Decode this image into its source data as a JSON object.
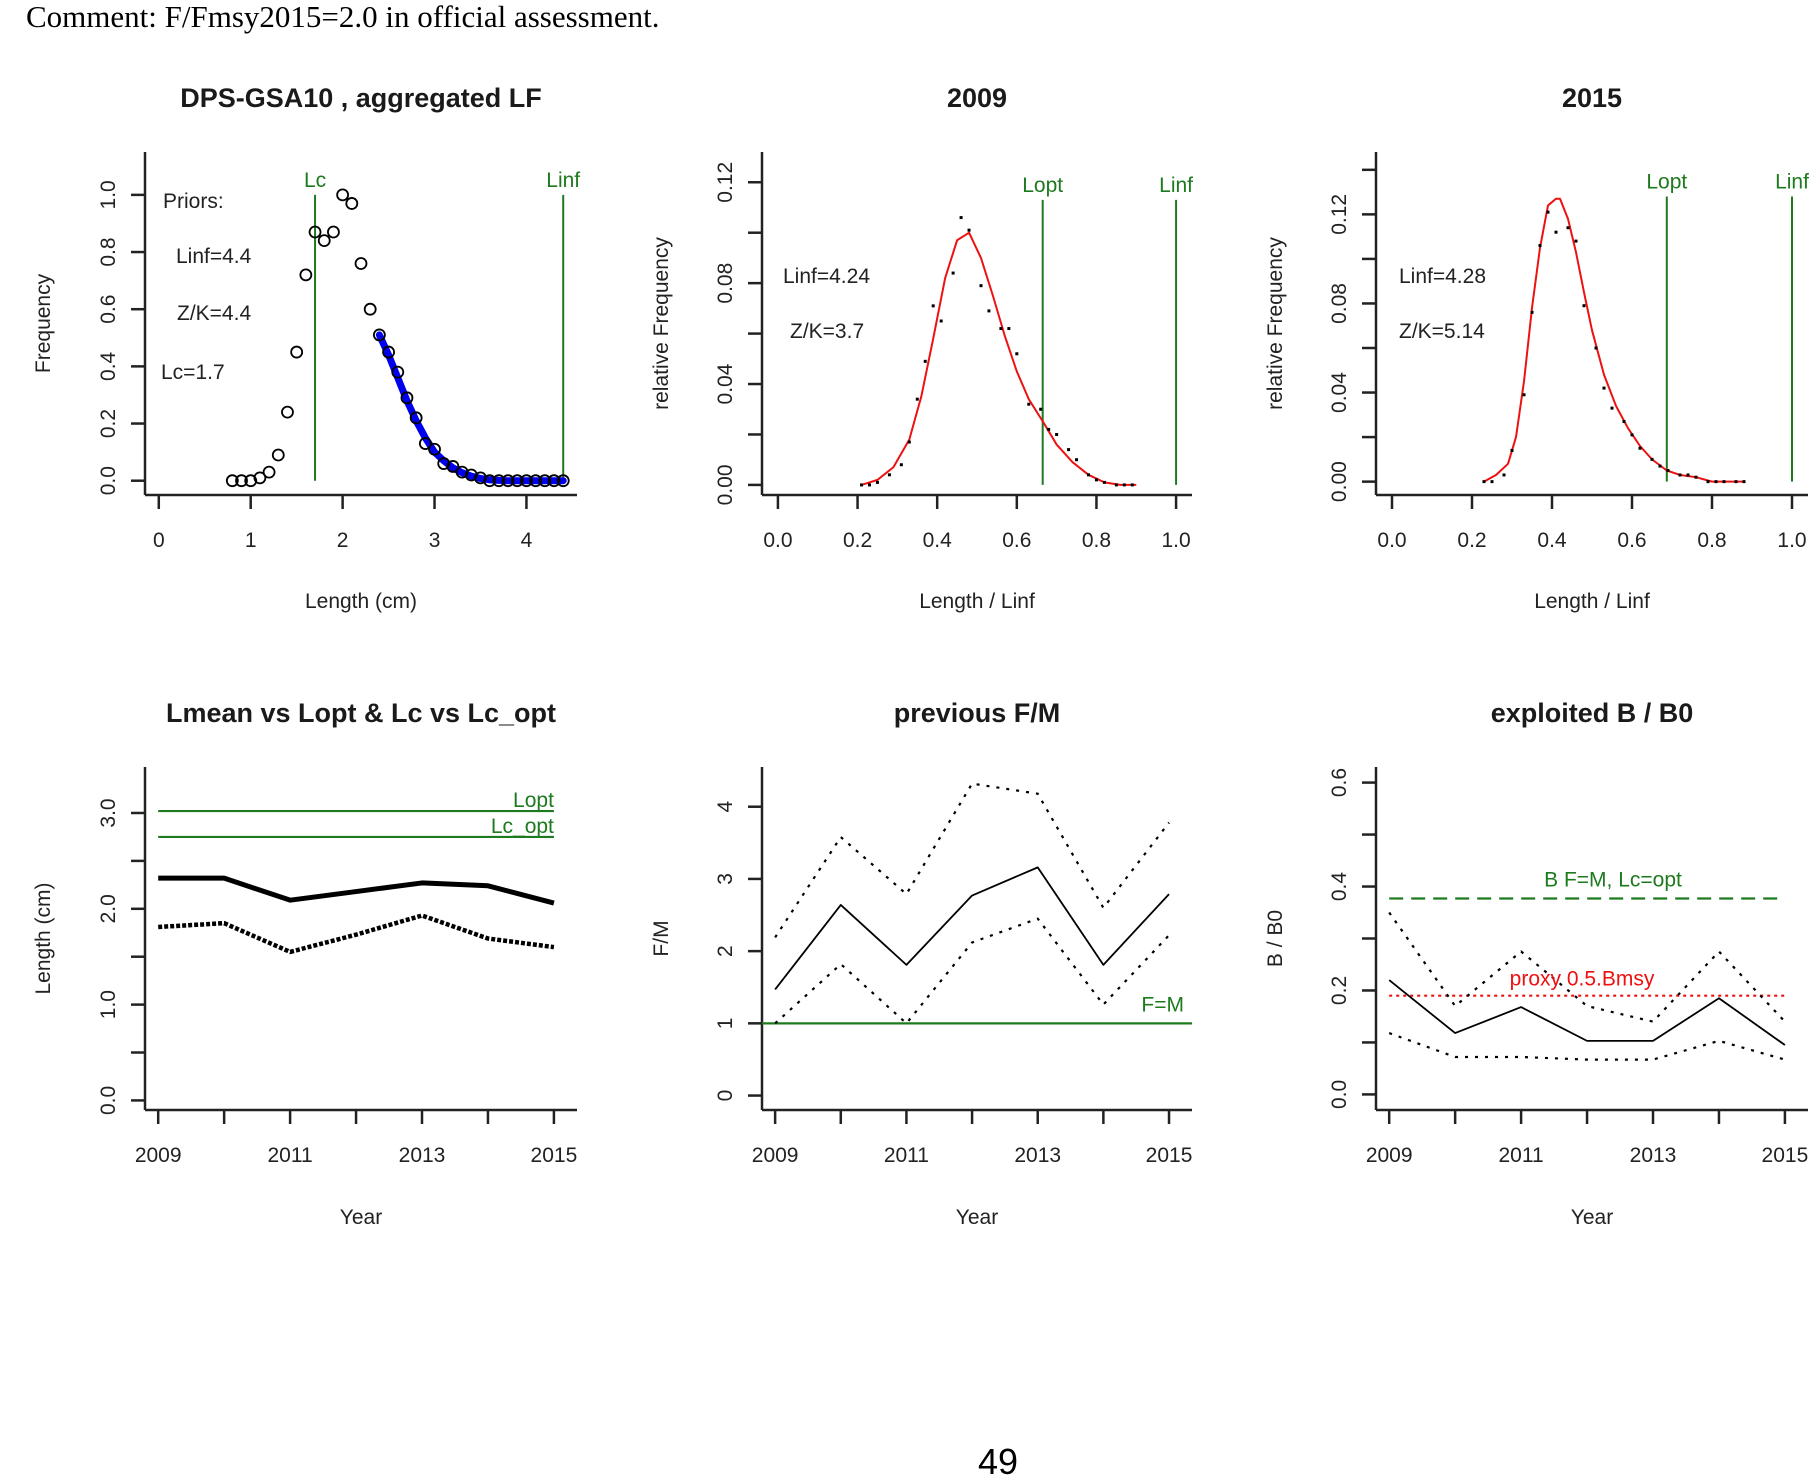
{
  "document": {
    "comment": "Comment: F/Fmsy2015=2.0 in official assessment.",
    "page_number": "49"
  },
  "colors": {
    "ref_line_green": "#1e7a1e",
    "fit_red": "#ee1111",
    "selection_blue": "#0000ee",
    "data_black": "#000000"
  },
  "chart_data": [
    {
      "id": "lf",
      "type": "scatter",
      "title": "DPS-GSA10 , aggregated LF",
      "xlabel": "Length (cm)",
      "ylabel": "Frequency",
      "xlim": [
        -0.15,
        4.55
      ],
      "ylim": [
        -0.05,
        1.15
      ],
      "xticks": [
        0,
        1,
        2,
        3,
        4
      ],
      "xtick_labels": [
        "0",
        "1",
        "2",
        "3",
        "4"
      ],
      "yticks": [
        0,
        0.2,
        0.4,
        0.6,
        0.8,
        1.0
      ],
      "ytick_labels": [
        "0.0",
        "0.2",
        "0.4",
        "0.6",
        "0.8",
        "1.0"
      ],
      "points": {
        "x": [
          0.8,
          0.9,
          1.0,
          1.1,
          1.2,
          1.3,
          1.4,
          1.5,
          1.6,
          1.7,
          1.8,
          1.9,
          2.0,
          2.1,
          2.2,
          2.3,
          2.4,
          2.5,
          2.6,
          2.7,
          2.8,
          2.9,
          3.0,
          3.1,
          3.2,
          3.3,
          3.4,
          3.5,
          3.6,
          3.7,
          3.8,
          3.9,
          4.0,
          4.1,
          4.2,
          4.3,
          4.4
        ],
        "y": [
          0,
          0,
          0,
          0.01,
          0.03,
          0.09,
          0.24,
          0.45,
          0.72,
          0.87,
          0.84,
          0.87,
          1.0,
          0.97,
          0.76,
          0.6,
          0.51,
          0.45,
          0.38,
          0.29,
          0.22,
          0.13,
          0.11,
          0.06,
          0.05,
          0.03,
          0.02,
          0.01,
          0,
          0,
          0,
          0,
          0,
          0,
          0,
          0,
          0
        ]
      },
      "fit_curve": {
        "name": "catch curve fit (blue)",
        "x": [
          2.4,
          2.5,
          2.6,
          2.7,
          2.8,
          2.9,
          3.0,
          3.1,
          3.2,
          3.3,
          3.4,
          3.5,
          3.6,
          3.7,
          3.8,
          3.9,
          4.0,
          4.1,
          4.2,
          4.3,
          4.4
        ],
        "y": [
          0.51,
          0.44,
          0.36,
          0.28,
          0.21,
          0.15,
          0.1,
          0.07,
          0.045,
          0.028,
          0.016,
          0.008,
          0.003,
          0.001,
          0,
          0,
          0,
          0,
          0,
          0,
          0
        ]
      },
      "vlines": [
        {
          "label": "Lc",
          "x": 1.7
        },
        {
          "label": "Linf",
          "x": 4.4
        }
      ],
      "annotations": [
        "Priors:",
        "Linf=4.4",
        "Z/K=4.4",
        "Lc=1.7"
      ]
    },
    {
      "id": "lf2009",
      "type": "scatter",
      "title": "2009",
      "xlabel": "Length / Linf",
      "ylabel": "relative Frequency",
      "xlim": [
        -0.04,
        1.04
      ],
      "ylim": [
        -0.004,
        0.132
      ],
      "xticks": [
        0,
        0.2,
        0.4,
        0.6,
        0.8,
        1.0
      ],
      "xtick_labels": [
        "0.0",
        "0.2",
        "0.4",
        "0.6",
        "0.8",
        "1.0"
      ],
      "yticks": [
        0,
        0.02,
        0.04,
        0.06,
        0.08,
        0.1,
        0.12
      ],
      "ytick_labels": [
        "0.00",
        "",
        "0.04",
        "",
        "0.08",
        "",
        "0.12"
      ],
      "points": {
        "x": [
          0.21,
          0.23,
          0.25,
          0.28,
          0.31,
          0.33,
          0.35,
          0.37,
          0.39,
          0.41,
          0.44,
          0.46,
          0.48,
          0.51,
          0.53,
          0.56,
          0.58,
          0.6,
          0.63,
          0.66,
          0.68,
          0.7,
          0.73,
          0.75,
          0.78,
          0.8,
          0.82,
          0.85,
          0.87,
          0.89
        ],
        "y": [
          0,
          0,
          0.001,
          0.004,
          0.008,
          0.017,
          0.034,
          0.049,
          0.071,
          0.065,
          0.084,
          0.106,
          0.101,
          0.079,
          0.069,
          0.062,
          0.062,
          0.052,
          0.032,
          0.03,
          0.022,
          0.02,
          0.014,
          0.01,
          0.004,
          0.002,
          0.001,
          0,
          0,
          0
        ]
      },
      "fit_curve": {
        "name": "fit (red)",
        "x": [
          0.21,
          0.25,
          0.29,
          0.33,
          0.36,
          0.39,
          0.42,
          0.45,
          0.48,
          0.51,
          0.54,
          0.57,
          0.6,
          0.63,
          0.666,
          0.7,
          0.74,
          0.78,
          0.82,
          0.86,
          0.9
        ],
        "y": [
          0,
          0.002,
          0.007,
          0.018,
          0.035,
          0.058,
          0.082,
          0.097,
          0.1,
          0.09,
          0.075,
          0.059,
          0.045,
          0.034,
          0.025,
          0.016,
          0.009,
          0.004,
          0.001,
          0,
          0
        ]
      },
      "vlines": [
        {
          "label": "Lopt",
          "x": 0.665
        },
        {
          "label": "Linf",
          "x": 1.0
        }
      ],
      "annotations": [
        "Linf=4.24",
        "Z/K=3.7"
      ]
    },
    {
      "id": "lf2015",
      "type": "scatter",
      "title": "2015",
      "xlabel": "Length / Linf",
      "ylabel": "relative Frequency",
      "xlim": [
        -0.04,
        1.04
      ],
      "ylim": [
        -0.006,
        0.148
      ],
      "xticks": [
        0,
        0.2,
        0.4,
        0.6,
        0.8,
        1.0
      ],
      "xtick_labels": [
        "0.0",
        "0.2",
        "0.4",
        "0.6",
        "0.8",
        "1.0"
      ],
      "yticks": [
        0,
        0.02,
        0.04,
        0.06,
        0.08,
        0.1,
        0.12,
        0.14
      ],
      "ytick_labels": [
        "0.00",
        "",
        "0.04",
        "",
        "0.08",
        "",
        "0.12",
        ""
      ],
      "points": {
        "x": [
          0.23,
          0.25,
          0.28,
          0.3,
          0.33,
          0.35,
          0.37,
          0.39,
          0.41,
          0.44,
          0.46,
          0.48,
          0.51,
          0.53,
          0.55,
          0.58,
          0.6,
          0.62,
          0.65,
          0.67,
          0.69,
          0.72,
          0.74,
          0.76,
          0.79,
          0.81,
          0.83,
          0.86,
          0.88
        ],
        "y": [
          0,
          0,
          0.003,
          0.014,
          0.039,
          0.076,
          0.106,
          0.121,
          0.112,
          0.114,
          0.108,
          0.079,
          0.06,
          0.042,
          0.033,
          0.027,
          0.021,
          0.015,
          0.01,
          0.007,
          0.005,
          0.003,
          0.003,
          0.002,
          0,
          0,
          0,
          0,
          0
        ]
      },
      "fit_curve": {
        "name": "fit (red)",
        "x": [
          0.23,
          0.26,
          0.29,
          0.31,
          0.33,
          0.35,
          0.37,
          0.39,
          0.41,
          0.42,
          0.44,
          0.46,
          0.48,
          0.5,
          0.53,
          0.56,
          0.59,
          0.62,
          0.65,
          0.687,
          0.72,
          0.76,
          0.8,
          0.84,
          0.88
        ],
        "y": [
          0,
          0.003,
          0.008,
          0.02,
          0.045,
          0.078,
          0.105,
          0.124,
          0.127,
          0.127,
          0.118,
          0.103,
          0.085,
          0.068,
          0.048,
          0.034,
          0.024,
          0.016,
          0.01,
          0.005,
          0.003,
          0.002,
          0,
          0,
          0
        ]
      },
      "vlines": [
        {
          "label": "Lopt",
          "x": 0.687
        },
        {
          "label": "Linf",
          "x": 1.0
        }
      ],
      "annotations": [
        "Linf=4.28",
        "Z/K=5.14"
      ]
    },
    {
      "id": "lmean",
      "type": "line",
      "title": "Lmean vs Lopt & Lc vs Lc_opt",
      "xlabel": "Year",
      "ylabel": "Length (cm)",
      "xlim": [
        2008.8,
        2015.35
      ],
      "ylim": [
        -0.1,
        3.48
      ],
      "xticks": [
        2009,
        2010,
        2011,
        2012,
        2013,
        2014,
        2015
      ],
      "xtick_labels": [
        "2009",
        "",
        "2011",
        "",
        "2013",
        "",
        "2015"
      ],
      "yticks": [
        0,
        0.5,
        1.0,
        1.5,
        2.0,
        2.5,
        3.0
      ],
      "ytick_labels": [
        "0.0",
        "",
        "1.0",
        "",
        "2.0",
        "",
        "3.0"
      ],
      "x": [
        2009,
        2010,
        2011,
        2012,
        2013,
        2014,
        2015
      ],
      "series": [
        {
          "name": "Lmean",
          "style": "thick-solid",
          "values": [
            2.32,
            2.32,
            2.09,
            2.18,
            2.27,
            2.24,
            2.06
          ]
        },
        {
          "name": "Lc",
          "style": "thick-dotted",
          "values": [
            1.81,
            1.85,
            1.55,
            1.73,
            1.93,
            1.69,
            1.6
          ]
        }
      ],
      "hlines": [
        {
          "label": "Lopt",
          "y": 3.02
        },
        {
          "label": "Lc_opt",
          "y": 2.75
        }
      ]
    },
    {
      "id": "fm",
      "type": "line",
      "title": "previous F/M",
      "xlabel": "Year",
      "ylabel": "F/M",
      "xlim": [
        2008.8,
        2015.35
      ],
      "ylim": [
        -0.2,
        4.55
      ],
      "xticks": [
        2009,
        2010,
        2011,
        2012,
        2013,
        2014,
        2015
      ],
      "xtick_labels": [
        "2009",
        "",
        "2011",
        "",
        "2013",
        "",
        "2015"
      ],
      "yticks": [
        0,
        1,
        2,
        3,
        4
      ],
      "ytick_labels": [
        "0",
        "1",
        "2",
        "3",
        "4"
      ],
      "x": [
        2009,
        2010,
        2011,
        2012,
        2013,
        2014,
        2015
      ],
      "series": [
        {
          "name": "F/M",
          "style": "solid",
          "values": [
            1.47,
            2.64,
            1.81,
            2.77,
            3.16,
            1.81,
            2.79
          ]
        },
        {
          "name": "upper",
          "style": "dotted",
          "values": [
            2.19,
            3.58,
            2.79,
            4.32,
            4.18,
            2.6,
            3.78
          ]
        },
        {
          "name": "lower",
          "style": "dotted",
          "values": [
            1.0,
            1.82,
            1.0,
            2.12,
            2.45,
            1.26,
            2.22
          ]
        }
      ],
      "hlines": [
        {
          "label": "F=M",
          "y": 1.0
        }
      ]
    },
    {
      "id": "bb0",
      "type": "line",
      "title": "exploited B / B0",
      "xlabel": "Year",
      "ylabel": "B / B0",
      "xlim": [
        2008.8,
        2015.35
      ],
      "ylim": [
        -0.03,
        0.63
      ],
      "xticks": [
        2009,
        2010,
        2011,
        2012,
        2013,
        2014,
        2015
      ],
      "xtick_labels": [
        "2009",
        "",
        "2011",
        "",
        "2013",
        "",
        "2015"
      ],
      "yticks": [
        0,
        0.1,
        0.2,
        0.3,
        0.4,
        0.5,
        0.6
      ],
      "ytick_labels": [
        "0.0",
        "",
        "0.2",
        "",
        "0.4",
        "",
        "0.6"
      ],
      "x": [
        2009,
        2010,
        2011,
        2012,
        2013,
        2014,
        2015
      ],
      "series": [
        {
          "name": "B/B0",
          "style": "solid",
          "values": [
            0.22,
            0.118,
            0.168,
            0.103,
            0.103,
            0.185,
            0.095
          ]
        },
        {
          "name": "upper",
          "style": "dotted",
          "values": [
            0.35,
            0.17,
            0.275,
            0.17,
            0.14,
            0.275,
            0.14
          ]
        },
        {
          "name": "lower",
          "style": "dotted",
          "values": [
            0.118,
            0.072,
            0.072,
            0.067,
            0.067,
            0.103,
            0.067
          ]
        }
      ],
      "hlines": [
        {
          "label": "B F=M, Lc=opt",
          "y": 0.377,
          "style": "dashed",
          "color": "green"
        },
        {
          "label": "proxy 0.5 Bmsy",
          "y": 0.19,
          "style": "dotted",
          "color": "red"
        }
      ]
    }
  ]
}
